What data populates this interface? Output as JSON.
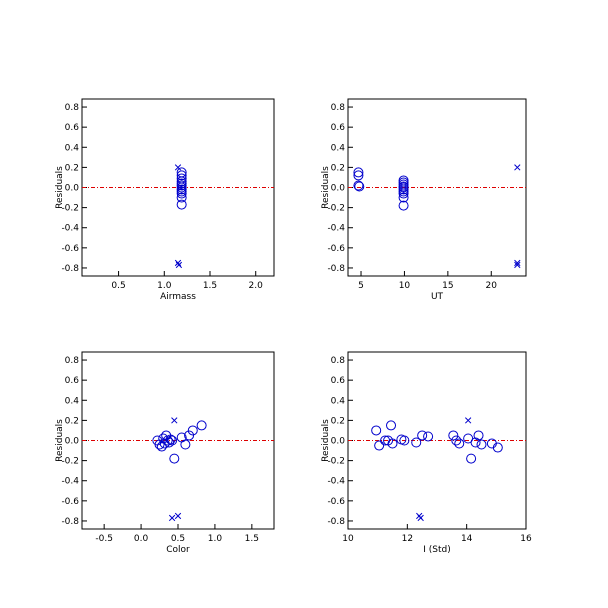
{
  "chart_data": [
    {
      "type": "scatter",
      "xlabel": "Airmass",
      "ylabel": "Residuals",
      "xlim": [
        0.1,
        2.2
      ],
      "ylim": [
        -0.88,
        0.88
      ],
      "xticks": [
        0.5,
        1.0,
        1.5,
        2.0
      ],
      "xtick_labels": [
        "0.5",
        "1.0",
        "1.5",
        "2.0"
      ],
      "yticks": [
        -0.8,
        -0.6,
        -0.4,
        -0.2,
        0.0,
        0.2,
        0.4,
        0.6,
        0.8
      ],
      "ytick_labels": [
        "-0.8",
        "-0.6",
        "-0.4",
        "-0.2",
        "0.0",
        "0.2",
        "0.4",
        "0.6",
        "0.8"
      ],
      "reference_line_y": 0,
      "circles": [
        [
          1.19,
          0.15
        ],
        [
          1.19,
          0.12
        ],
        [
          1.19,
          0.09
        ],
        [
          1.19,
          0.06
        ],
        [
          1.19,
          0.04
        ],
        [
          1.19,
          0.02
        ],
        [
          1.19,
          0.0
        ],
        [
          1.19,
          -0.02
        ],
        [
          1.19,
          -0.04
        ],
        [
          1.19,
          -0.06
        ],
        [
          1.19,
          -0.1
        ],
        [
          1.19,
          -0.17
        ]
      ],
      "crosses": [
        [
          1.15,
          0.2
        ],
        [
          1.17,
          0.0
        ],
        [
          1.15,
          -0.75
        ],
        [
          1.16,
          -0.77
        ]
      ]
    },
    {
      "type": "scatter",
      "xlabel": "UT",
      "ylabel": "Residuals",
      "xlim": [
        3.5,
        24.0
      ],
      "ylim": [
        -0.88,
        0.88
      ],
      "xticks": [
        5,
        10,
        15,
        20
      ],
      "xtick_labels": [
        "5",
        "10",
        "15",
        "20"
      ],
      "yticks": [
        -0.8,
        -0.6,
        -0.4,
        -0.2,
        0.0,
        0.2,
        0.4,
        0.6,
        0.8
      ],
      "ytick_labels": [
        "-0.8",
        "-0.6",
        "-0.4",
        "-0.2",
        "0.0",
        "0.2",
        "0.4",
        "0.6",
        "0.8"
      ],
      "reference_line_y": 0,
      "circles": [
        [
          4.7,
          0.15
        ],
        [
          4.7,
          0.12
        ],
        [
          4.7,
          0.02
        ],
        [
          4.8,
          0.01
        ],
        [
          9.9,
          0.07
        ],
        [
          9.9,
          0.05
        ],
        [
          9.9,
          0.03
        ],
        [
          9.9,
          0.01
        ],
        [
          9.9,
          0.0
        ],
        [
          9.9,
          -0.02
        ],
        [
          9.9,
          -0.04
        ],
        [
          9.9,
          -0.06
        ],
        [
          9.9,
          -0.1
        ],
        [
          9.9,
          -0.18
        ]
      ],
      "crosses": [
        [
          23.0,
          0.2
        ],
        [
          23.0,
          -0.75
        ],
        [
          23.0,
          -0.77
        ]
      ]
    },
    {
      "type": "scatter",
      "xlabel": "Color",
      "ylabel": "Residuals",
      "xlim": [
        -0.8,
        1.8
      ],
      "ylim": [
        -0.88,
        0.88
      ],
      "xticks": [
        -0.5,
        0.0,
        0.5,
        1.0,
        1.5
      ],
      "xtick_labels": [
        "-0.5",
        "0.0",
        "0.5",
        "1.0",
        "1.5"
      ],
      "yticks": [
        -0.8,
        -0.6,
        -0.4,
        -0.2,
        0.0,
        0.2,
        0.4,
        0.6,
        0.8
      ],
      "ytick_labels": [
        "-0.8",
        "-0.6",
        "-0.4",
        "-0.2",
        "0.0",
        "0.2",
        "0.4",
        "0.6",
        "0.8"
      ],
      "reference_line_y": 0,
      "circles": [
        [
          0.22,
          0.0
        ],
        [
          0.25,
          -0.04
        ],
        [
          0.28,
          -0.06
        ],
        [
          0.3,
          0.02
        ],
        [
          0.32,
          -0.03
        ],
        [
          0.34,
          0.05
        ],
        [
          0.36,
          0.0
        ],
        [
          0.38,
          -0.02
        ],
        [
          0.4,
          0.01
        ],
        [
          0.42,
          0.0
        ],
        [
          0.45,
          -0.18
        ],
        [
          0.55,
          0.03
        ],
        [
          0.6,
          -0.04
        ],
        [
          0.65,
          0.05
        ],
        [
          0.7,
          0.1
        ],
        [
          0.82,
          0.15
        ]
      ],
      "crosses": [
        [
          0.45,
          0.2
        ],
        [
          0.42,
          -0.77
        ],
        [
          0.5,
          -0.75
        ]
      ]
    },
    {
      "type": "scatter",
      "xlabel": "I (Std)",
      "ylabel": "Residuals",
      "xlim": [
        10.0,
        16.0
      ],
      "ylim": [
        -0.88,
        0.88
      ],
      "xticks": [
        10,
        12,
        14,
        16
      ],
      "xtick_labels": [
        "10",
        "12",
        "14",
        "16"
      ],
      "yticks": [
        -0.8,
        -0.6,
        -0.4,
        -0.2,
        0.0,
        0.2,
        0.4,
        0.6,
        0.8
      ],
      "ytick_labels": [
        "-0.8",
        "-0.6",
        "-0.4",
        "-0.2",
        "0.0",
        "0.2",
        "0.4",
        "0.6",
        "0.8"
      ],
      "reference_line_y": 0,
      "circles": [
        [
          10.95,
          0.1
        ],
        [
          11.05,
          -0.05
        ],
        [
          11.25,
          0.0
        ],
        [
          11.35,
          0.0
        ],
        [
          11.45,
          0.15
        ],
        [
          11.5,
          -0.03
        ],
        [
          11.8,
          0.01
        ],
        [
          11.9,
          0.0
        ],
        [
          12.3,
          -0.02
        ],
        [
          12.5,
          0.05
        ],
        [
          12.7,
          0.04
        ],
        [
          13.55,
          0.05
        ],
        [
          13.65,
          0.0
        ],
        [
          13.75,
          -0.03
        ],
        [
          14.05,
          0.02
        ],
        [
          14.15,
          -0.18
        ],
        [
          14.3,
          -0.02
        ],
        [
          14.4,
          0.05
        ],
        [
          14.5,
          -0.04
        ],
        [
          14.85,
          -0.03
        ],
        [
          15.05,
          -0.07
        ]
      ],
      "crosses": [
        [
          14.05,
          0.2
        ],
        [
          12.4,
          -0.75
        ],
        [
          12.45,
          -0.77
        ]
      ]
    }
  ]
}
